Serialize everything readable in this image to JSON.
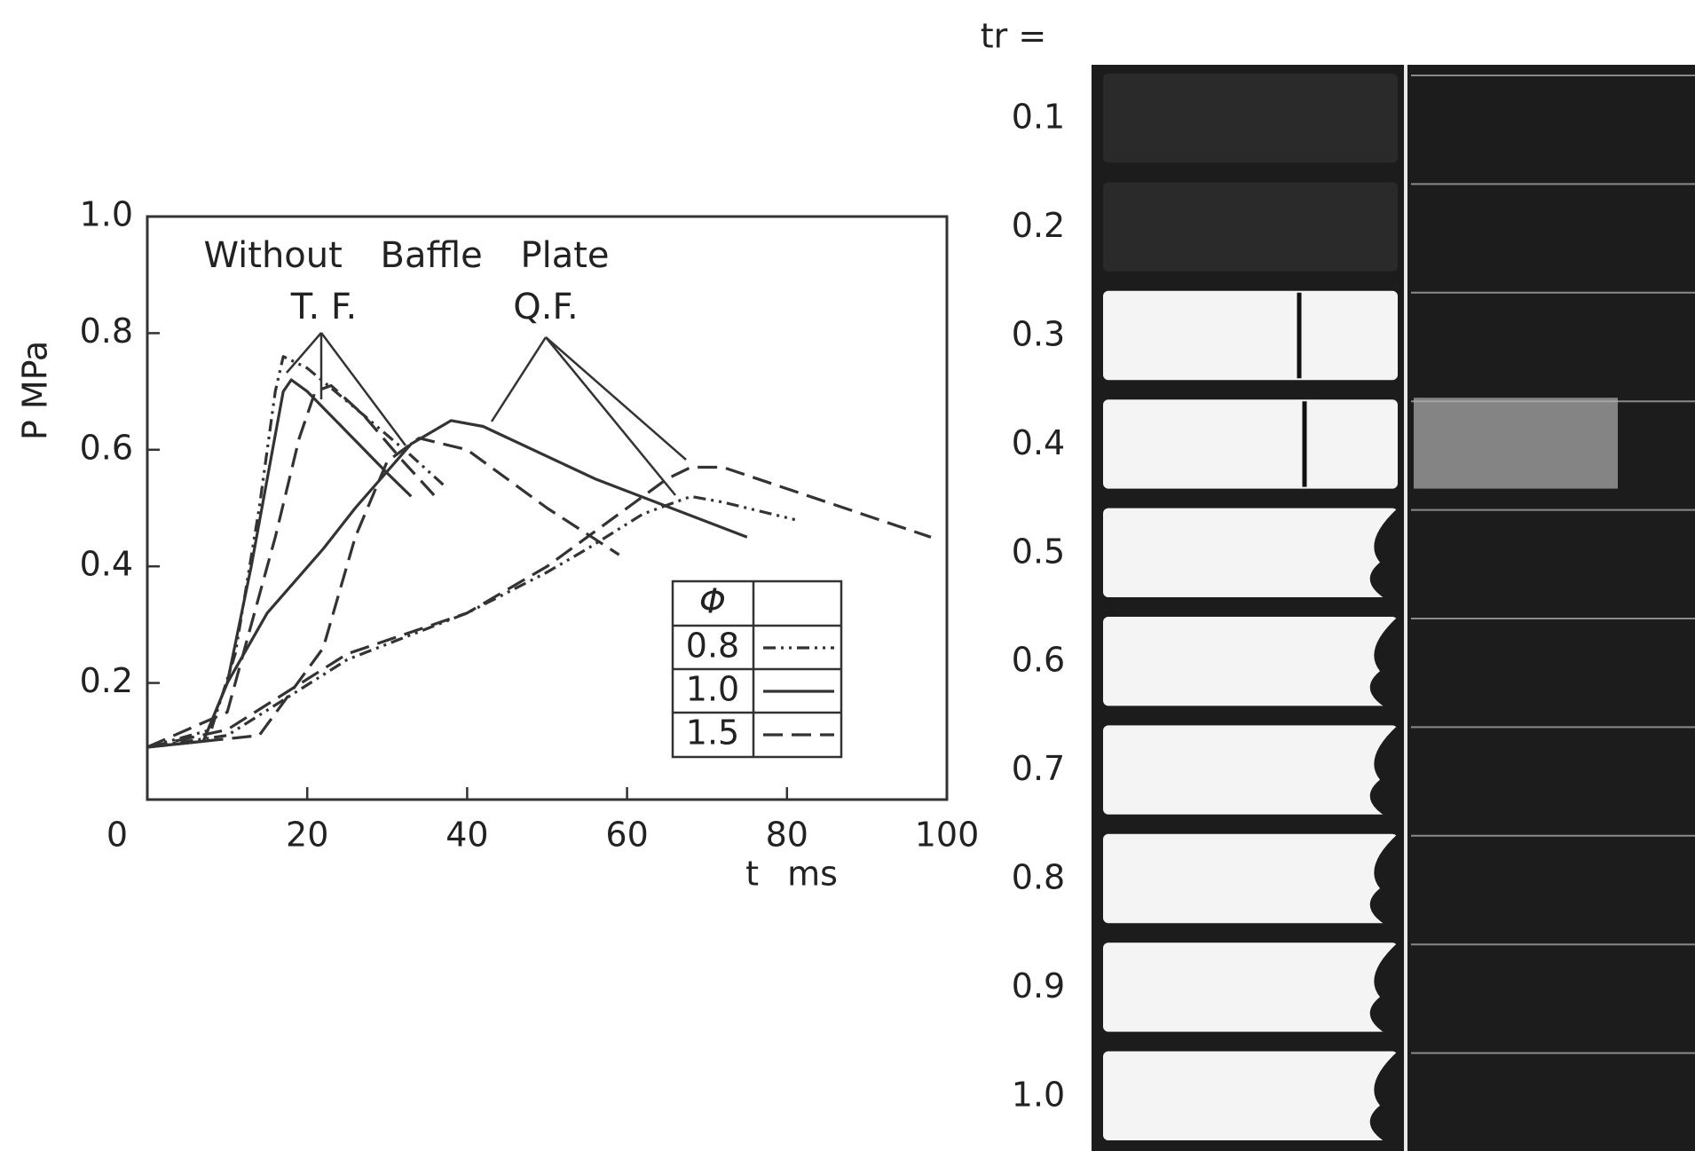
{
  "chart_data": {
    "type": "line",
    "annotations": [
      "Without Baffle Plate",
      "T. F.",
      "Q.F."
    ],
    "x_label": "t ms",
    "y_label": "P MPa",
    "xlim": [
      0,
      100
    ],
    "xticks": [
      0,
      20,
      40,
      60,
      80,
      100
    ],
    "ylim": [
      0,
      1
    ],
    "yticks": [
      0.2,
      0.4,
      0.6,
      0.8,
      {
        "value": 1,
        "label": "1.0"
      }
    ],
    "legend_title": "Φ",
    "series": [
      {
        "name": "0.8",
        "color": "#333",
        "dash": "14 6 3 6 3 6",
        "curves": [
          {
            "x": [
              0,
              8,
              11,
              14,
              16,
              17,
              20,
              27,
              33,
              37
            ],
            "values": [
              0.09,
              0.12,
              0.25,
              0.5,
              0.7,
              0.76,
              0.74,
              0.66,
              0.59,
              0.54
            ]
          },
          {
            "x": [
              0,
              10,
              25,
              40,
              50,
              55,
              62,
              68,
              72,
              81
            ],
            "values": [
              0.09,
              0.11,
              0.24,
              0.32,
              0.39,
              0.43,
              0.49,
              0.52,
              0.51,
              0.48
            ]
          }
        ]
      },
      {
        "name": "1.0",
        "color": "#333",
        "dash": "none",
        "curves": [
          {
            "x": [
              0,
              7,
              10,
              13,
              15,
              17,
              18,
              20,
              25,
              30,
              33
            ],
            "values": [
              0.09,
              0.1,
              0.2,
              0.4,
              0.55,
              0.7,
              0.72,
              0.7,
              0.63,
              0.56,
              0.52
            ]
          },
          {
            "x": [
              0,
              7,
              10,
              15,
              22,
              26,
              33,
              38,
              42,
              56,
              75
            ],
            "values": [
              0.09,
              0.1,
              0.2,
              0.32,
              0.43,
              0.5,
              0.61,
              0.65,
              0.64,
              0.55,
              0.45
            ]
          }
        ]
      },
      {
        "name": "1.5",
        "color": "#333",
        "dash": "22 10",
        "curves": [
          {
            "x": [
              0,
              10,
              13,
              16,
              19,
              21,
              23,
              27,
              32,
              36
            ],
            "values": [
              0.09,
              0.15,
              0.3,
              0.45,
              0.62,
              0.7,
              0.71,
              0.66,
              0.58,
              0.52
            ]
          },
          {
            "x": [
              0,
              14,
              22,
              26,
              30,
              34,
              40,
              50,
              59
            ],
            "values": [
              0.09,
              0.11,
              0.26,
              0.45,
              0.58,
              0.62,
              0.6,
              0.5,
              0.42
            ]
          },
          {
            "x": [
              0,
              10,
              25,
              40,
              50,
              55,
              60,
              65,
              68,
              72,
              85,
              98
            ],
            "values": [
              0.09,
              0.12,
              0.25,
              0.32,
              0.4,
              0.45,
              0.5,
              0.55,
              0.57,
              0.57,
              0.51,
              0.45
            ]
          }
        ]
      }
    ]
  },
  "photo": {
    "label": "tr =",
    "frames": [
      "0.1",
      "0.2",
      "0.3",
      "0.4",
      "0.5",
      "0.6",
      "0.7",
      "0.8",
      "0.9",
      "1.0"
    ]
  }
}
